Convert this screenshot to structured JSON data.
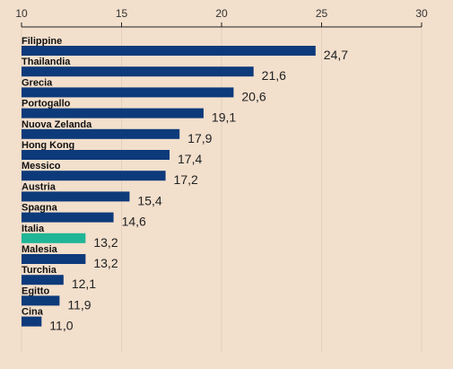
{
  "chart_data": {
    "type": "bar",
    "orientation": "horizontal",
    "xlim": [
      10,
      30
    ],
    "ticks": [
      "10",
      "15",
      "20",
      "25",
      "30"
    ],
    "tick_values": [
      10,
      15,
      20,
      25,
      30
    ],
    "grid": true,
    "categories": [
      "Filippine",
      "Thailandia",
      "Grecia",
      "Portogallo",
      "Nuova Zelanda",
      "Hong Kong",
      "Messico",
      "Austria",
      "Spagna",
      "Italia",
      "Malesia",
      "Turchia",
      "Egitto",
      "Cina"
    ],
    "values": [
      24.7,
      21.6,
      20.6,
      19.1,
      17.9,
      17.4,
      17.2,
      15.4,
      14.6,
      13.2,
      13.2,
      12.1,
      11.9,
      11.0
    ],
    "value_labels": [
      "24,7",
      "21,6",
      "20,6",
      "19,1",
      "17,9",
      "17,4",
      "17,2",
      "15,4",
      "14,6",
      "13,2",
      "13,2",
      "12,1",
      "11,9",
      "11,0"
    ],
    "highlight": "Italia",
    "colors": {
      "bar": "#0d3a7a",
      "highlight": "#1fb597",
      "gridline": "#e3cfbb",
      "axis": "#222222",
      "background": "#f2dfcc"
    }
  }
}
